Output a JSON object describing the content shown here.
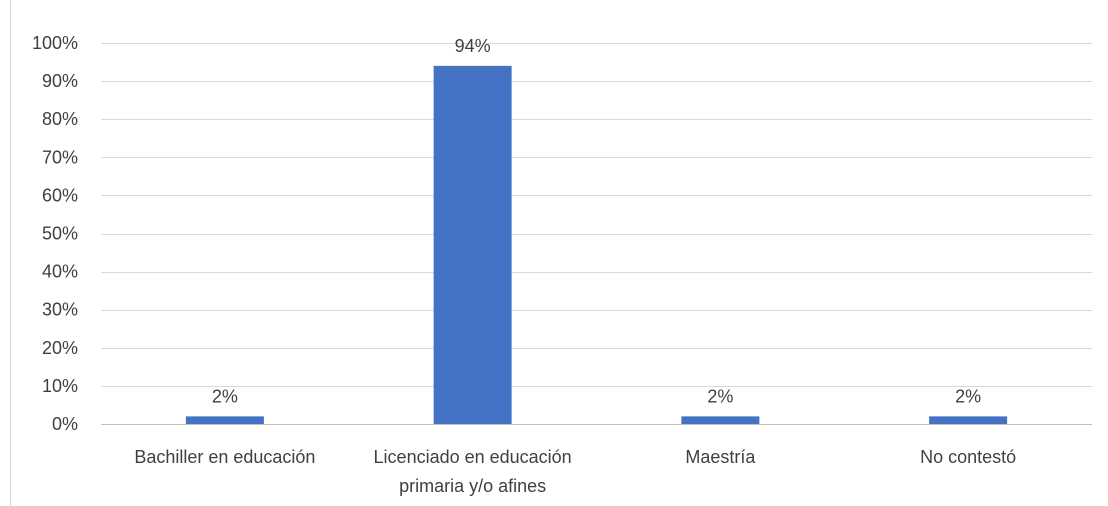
{
  "chart_data": {
    "type": "bar",
    "categories": [
      [
        "Bachiller en educación"
      ],
      [
        "Licenciado en educación",
        "primaria y/o afines"
      ],
      [
        "Maestría"
      ],
      [
        "No contestó"
      ]
    ],
    "values": [
      2,
      94,
      2,
      2
    ],
    "data_labels": [
      "2%",
      "94%",
      "2%",
      "2%"
    ],
    "y_ticks": [
      "0%",
      "10%",
      "20%",
      "30%",
      "40%",
      "50%",
      "60%",
      "70%",
      "80%",
      "90%",
      "100%"
    ],
    "ylim": [
      0,
      100
    ],
    "grid": true,
    "legend": "none",
    "bar_color": "#4472c4"
  }
}
